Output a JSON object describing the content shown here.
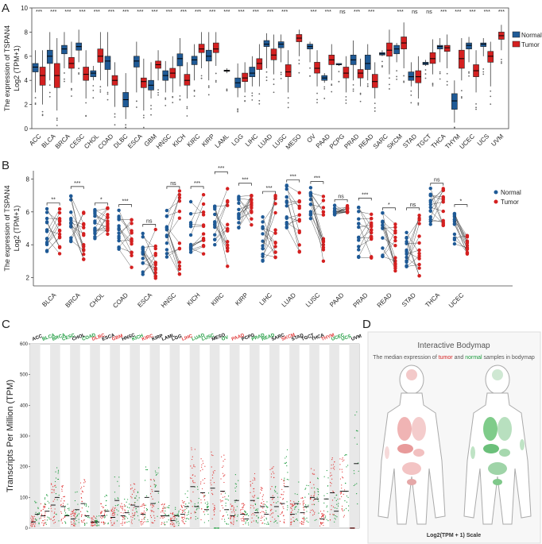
{
  "colors": {
    "normal": "#1f5a96",
    "tumor": "#d42020",
    "c_normal": "#1a9a3c",
    "c_tumor": "#e03838",
    "c_black": "#111111"
  },
  "chart_data": [
    {
      "panel": "A",
      "type": "boxplot",
      "ylabel_line1": "The expression of TSPAN4",
      "ylabel_line2": "Log2 (TPM+1)",
      "ylim": [
        0,
        10
      ],
      "yticks": [
        "0",
        "2",
        "4",
        "6",
        "8",
        "10"
      ],
      "legend": [
        "Normal",
        "Tumor"
      ],
      "categories": [
        "ACC",
        "BLCA",
        "BRCA",
        "CESC",
        "CHOL",
        "COAD",
        "DLBC",
        "ESCA",
        "GBM",
        "HNSC",
        "KICH",
        "KIRC",
        "KIRP",
        "LAML",
        "LGG",
        "LIHC",
        "LUAD",
        "LUSC",
        "MESO",
        "OV",
        "PAAD",
        "PCPG",
        "PRAD",
        "READ",
        "SARC",
        "SKCM",
        "STAD",
        "TGCT",
        "THCA",
        "THYM",
        "UCEC",
        "UCS",
        "UVM"
      ],
      "significance": [
        "***",
        "***",
        "***",
        "***",
        "***",
        "***",
        "***",
        "***",
        "***",
        "***",
        "***",
        "***",
        "***",
        "***",
        "***",
        "***",
        "***",
        "***",
        "",
        "***",
        "***",
        "ns",
        "***",
        "***",
        "",
        "***",
        "ns",
        "ns",
        "***",
        "***",
        "***",
        "***",
        "***"
      ],
      "series": [
        {
          "name": "Normal",
          "values": [
            [
              3.0,
              4.7,
              5.1,
              5.4,
              6.5
            ],
            [
              4.0,
              5.4,
              6.0,
              6.5,
              8.0
            ],
            [
              5.0,
              6.2,
              6.6,
              6.9,
              8.0
            ],
            [
              5.5,
              6.5,
              6.8,
              7.1,
              8.2
            ],
            [
              4.0,
              4.3,
              4.6,
              4.8,
              5.2
            ],
            [
              3.5,
              4.9,
              5.6,
              6.0,
              8.0
            ],
            [
              0.8,
              1.8,
              2.4,
              3.0,
              4.6
            ],
            [
              3.0,
              5.1,
              5.6,
              6.0,
              7.2
            ],
            [
              2.5,
              3.2,
              3.6,
              4.0,
              5.5
            ],
            [
              3.0,
              4.0,
              4.4,
              4.8,
              5.6
            ],
            [
              3.5,
              5.2,
              5.8,
              6.2,
              7.5
            ],
            [
              4.0,
              5.3,
              5.7,
              6.0,
              7.0
            ],
            [
              4.0,
              5.6,
              6.0,
              6.5,
              8.0
            ],
            [
              4.6,
              4.75,
              4.8,
              4.85,
              5.0
            ],
            [
              2.6,
              3.4,
              3.8,
              4.2,
              5.4
            ],
            [
              3.5,
              4.3,
              4.6,
              5.1,
              6.0
            ],
            [
              5.0,
              6.8,
              7.0,
              7.3,
              7.9
            ],
            [
              5.5,
              6.7,
              7.0,
              7.2,
              7.8
            ],
            null,
            [
              5.5,
              6.6,
              6.8,
              7.0,
              7.2
            ],
            [
              3.8,
              4.0,
              4.2,
              4.4,
              4.6
            ],
            [
              5.2,
              5.3,
              5.3,
              5.4,
              5.4
            ],
            [
              4.0,
              5.3,
              5.7,
              6.1,
              7.3
            ],
            [
              4.0,
              4.9,
              5.4,
              6.1,
              7.0
            ],
            [
              6.0,
              6.1,
              6.2,
              6.3,
              6.5
            ],
            [
              5.5,
              6.2,
              6.6,
              6.9,
              7.1
            ],
            [
              3.5,
              4.0,
              4.3,
              4.7,
              5.5
            ],
            [
              5.2,
              5.3,
              5.4,
              5.5,
              5.7
            ],
            [
              5.5,
              6.6,
              6.8,
              6.9,
              7.5
            ],
            [
              0.5,
              1.6,
              2.3,
              2.9,
              4.0
            ],
            [
              5.5,
              6.6,
              6.9,
              7.1,
              7.6
            ],
            [
              6.0,
              6.8,
              7.0,
              7.1,
              7.5
            ],
            null
          ]
        },
        {
          "name": "Tumor",
          "values": [
            [
              2.0,
              3.6,
              4.4,
              5.1,
              6.5
            ],
            [
              1.5,
              3.4,
              4.4,
              5.4,
              7.5
            ],
            [
              3.8,
              5.0,
              5.4,
              5.9,
              7.2
            ],
            [
              2.5,
              4.0,
              4.5,
              5.1,
              6.5
            ],
            [
              4.0,
              5.5,
              6.0,
              6.6,
              8.0
            ],
            [
              1.8,
              3.6,
              4.0,
              4.4,
              5.5
            ],
            null,
            [
              1.5,
              3.4,
              3.9,
              4.2,
              5.8
            ],
            [
              4.0,
              5.0,
              5.3,
              5.6,
              6.5
            ],
            [
              3.0,
              4.2,
              4.6,
              5.0,
              6.0
            ],
            [
              2.5,
              3.6,
              4.0,
              4.5,
              5.5
            ],
            [
              5.0,
              6.3,
              6.6,
              7.0,
              8.0
            ],
            [
              5.2,
              6.3,
              6.6,
              7.1,
              8.0
            ],
            null,
            [
              3.0,
              3.9,
              4.2,
              4.6,
              5.5
            ],
            [
              3.5,
              4.9,
              5.4,
              5.8,
              7.0
            ],
            [
              4.5,
              5.7,
              6.1,
              6.6,
              7.8
            ],
            [
              3.0,
              4.3,
              4.7,
              5.3,
              6.5
            ],
            [
              6.0,
              7.2,
              7.5,
              7.8,
              8.2
            ],
            [
              3.5,
              4.6,
              5.0,
              5.5,
              6.5
            ],
            [
              4.0,
              5.3,
              5.7,
              6.1,
              7.0
            ],
            [
              3.0,
              4.2,
              4.6,
              5.1,
              6.0
            ],
            [
              3.5,
              4.2,
              4.6,
              4.9,
              5.8
            ],
            [
              2.5,
              3.4,
              3.9,
              4.5,
              5.5
            ],
            [
              4.5,
              6.0,
              6.5,
              7.1,
              8.2
            ],
            [
              5.0,
              6.6,
              7.1,
              7.6,
              8.8
            ],
            [
              2.5,
              3.8,
              4.3,
              4.8,
              6.0
            ],
            [
              4.5,
              5.4,
              5.8,
              6.3,
              7.4
            ],
            [
              5.0,
              6.4,
              6.7,
              6.9,
              7.8
            ],
            [
              4.0,
              5.0,
              5.8,
              6.5,
              7.5
            ],
            [
              3.0,
              4.3,
              4.8,
              5.3,
              6.5
            ],
            [
              3.5,
              5.5,
              6.0,
              6.4,
              7.2
            ],
            [
              6.5,
              7.4,
              7.7,
              8.0,
              8.6
            ]
          ]
        }
      ]
    },
    {
      "panel": "B",
      "type": "paired-dot",
      "ylabel_line1": "The expression of TSPAN4",
      "ylabel_line2": "Log2 (TPM+1)",
      "ylim": [
        1.5,
        8.5
      ],
      "yticks": [
        "2",
        "4",
        "6",
        "8"
      ],
      "legend": [
        "Normal",
        "Tumor"
      ],
      "categories": [
        "BLCA",
        "BRCA",
        "CHOL",
        "COAD",
        "ESCA",
        "HNSC",
        "KICH",
        "KIRC",
        "KIRP",
        "LIHC",
        "LUAD",
        "LUSC",
        "PAAD",
        "PRAD",
        "READ",
        "STAD",
        "THCA",
        "UCEC"
      ],
      "significance": [
        "**",
        "***",
        "*",
        "***",
        "ns",
        "ns",
        "***",
        "***",
        "***",
        "***",
        "***",
        "***",
        "ns",
        "***",
        "*",
        "ns",
        "ns",
        "*"
      ],
      "normal_range": [
        [
          3.5,
          6.3
        ],
        [
          4.0,
          7.3
        ],
        [
          4.2,
          6.3
        ],
        [
          3.5,
          6.2
        ],
        [
          2.2,
          5.0
        ],
        [
          3.2,
          6.2
        ],
        [
          3.5,
          7.0
        ],
        [
          4.0,
          7.0
        ],
        [
          5.0,
          7.0
        ],
        [
          3.0,
          6.2
        ],
        [
          5.0,
          7.7
        ],
        [
          5.0,
          7.6
        ],
        [
          5.8,
          6.4
        ],
        [
          3.0,
          6.6
        ],
        [
          3.0,
          6.0
        ],
        [
          2.3,
          5.5
        ],
        [
          5.0,
          7.5
        ],
        [
          4.0,
          6.2
        ]
      ],
      "tumor_range": [
        [
          3.4,
          6.2
        ],
        [
          3.0,
          7.0
        ],
        [
          4.6,
          6.3
        ],
        [
          2.1,
          5.8
        ],
        [
          1.8,
          5.0
        ],
        [
          2.2,
          7.3
        ],
        [
          2.8,
          7.3
        ],
        [
          2.3,
          8.2
        ],
        [
          5.0,
          7.5
        ],
        [
          3.2,
          7.0
        ],
        [
          3.5,
          7.6
        ],
        [
          3.0,
          7.0
        ],
        [
          5.9,
          6.5
        ],
        [
          2.8,
          6.0
        ],
        [
          2.4,
          5.3
        ],
        [
          2.1,
          6.0
        ],
        [
          5.0,
          7.5
        ],
        [
          3.2,
          5.0
        ]
      ]
    },
    {
      "panel": "C",
      "type": "scatter",
      "ylabel": "Transcripts Per Million (TPM)",
      "ylim": [
        0,
        600
      ],
      "yticks": [
        "0",
        "100",
        "200",
        "300",
        "400",
        "500",
        "600"
      ],
      "categories": [
        "ACC",
        "BLCA",
        "BRCA",
        "CESC",
        "CHOL",
        "COAD",
        "DLBC",
        "ESCA",
        "GBM",
        "HNSC",
        "KICH",
        "KIRC",
        "KIRP",
        "LAML",
        "LGG",
        "LIHC",
        "LUAD",
        "LUSC",
        "MESO",
        "OV",
        "PAAD",
        "PCPG",
        "PRAD",
        "READ",
        "SARC",
        "SKCM",
        "STAD",
        "TGCT",
        "THCA",
        "THYM",
        "UCEC",
        "UCS",
        "UVM"
      ],
      "category_color": [
        "black",
        "green",
        "green",
        "green",
        "black",
        "green",
        "red",
        "black",
        "red",
        "black",
        "green",
        "red",
        "black",
        "black",
        "black",
        "red",
        "green",
        "green",
        "black",
        "green",
        "red",
        "black",
        "green",
        "green",
        "black",
        "red",
        "black",
        "black",
        "black",
        "red",
        "green",
        "green",
        "black"
      ],
      "medians": [
        [
          20,
          45
        ],
        [
          40,
          55
        ],
        [
          75,
          100
        ],
        [
          70,
          40
        ],
        [
          30,
          60
        ],
        [
          80,
          40
        ],
        [
          20,
          20
        ],
        [
          40,
          55
        ],
        [
          35,
          90
        ],
        [
          40,
          50
        ],
        [
          75,
          70
        ],
        [
          45,
          100
        ],
        [
          80,
          120
        ],
        [
          40,
          40
        ],
        [
          25,
          40
        ],
        [
          45,
          70
        ],
        [
          135,
          70
        ],
        [
          115,
          60
        ],
        [
          130,
          0
        ],
        [
          120,
          60
        ],
        [
          40,
          90
        ],
        [
          45,
          30
        ],
        [
          90,
          50
        ],
        [
          70,
          45
        ],
        [
          100,
          70
        ],
        [
          80,
          135
        ],
        [
          45,
          80
        ],
        [
          50,
          70
        ],
        [
          100,
          95
        ],
        [
          30,
          95
        ],
        [
          115,
          55
        ],
        [
          120,
          120
        ],
        [
          0,
          210
        ]
      ]
    },
    {
      "panel": "D",
      "type": "bodymap",
      "title": "Interactive Bodymap",
      "subtitle_part1": "The median expression of ",
      "subtitle_tumor": "tumor",
      "subtitle_part2": " and ",
      "subtitle_normal": "normal",
      "subtitle_part3": " samples in bodymap",
      "scale_label": "Log2(TPM + 1) Scale"
    }
  ],
  "panel_labels": {
    "A": "A",
    "B": "B",
    "C": "C",
    "D": "D"
  }
}
